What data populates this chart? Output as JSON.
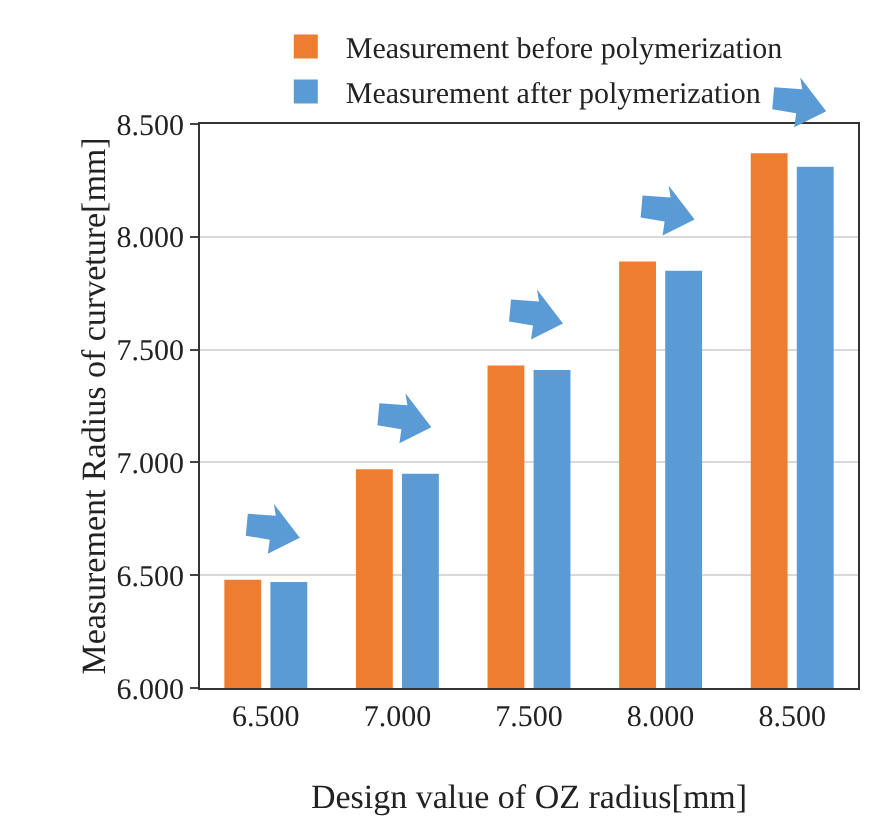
{
  "chart_data": {
    "type": "bar",
    "xlabel": "Design value of OZ radius[mm]",
    "ylabel": "Measurement Radius of curveture[mm]",
    "categories": [
      "6.500",
      "7.000",
      "7.500",
      "8.000",
      "8.500"
    ],
    "series": [
      {
        "name": "Measurement before polymerization",
        "color": "#ed7d31",
        "values": [
          6.48,
          6.97,
          7.43,
          7.89,
          8.37
        ]
      },
      {
        "name": "Measurement after polymerization",
        "color": "#5b9bd5",
        "values": [
          6.47,
          6.95,
          7.41,
          7.85,
          8.31
        ]
      }
    ],
    "ylim": [
      6.0,
      8.5
    ],
    "yticks": [
      {
        "value": 6.0,
        "label": "6.000"
      },
      {
        "value": 6.5,
        "label": "6.500"
      },
      {
        "value": 7.0,
        "label": "7.000"
      },
      {
        "value": 7.5,
        "label": "7.500"
      },
      {
        "value": 8.0,
        "label": "8.000"
      },
      {
        "value": 8.5,
        "label": "8.500"
      }
    ],
    "grid": "y",
    "legend": "top left"
  }
}
